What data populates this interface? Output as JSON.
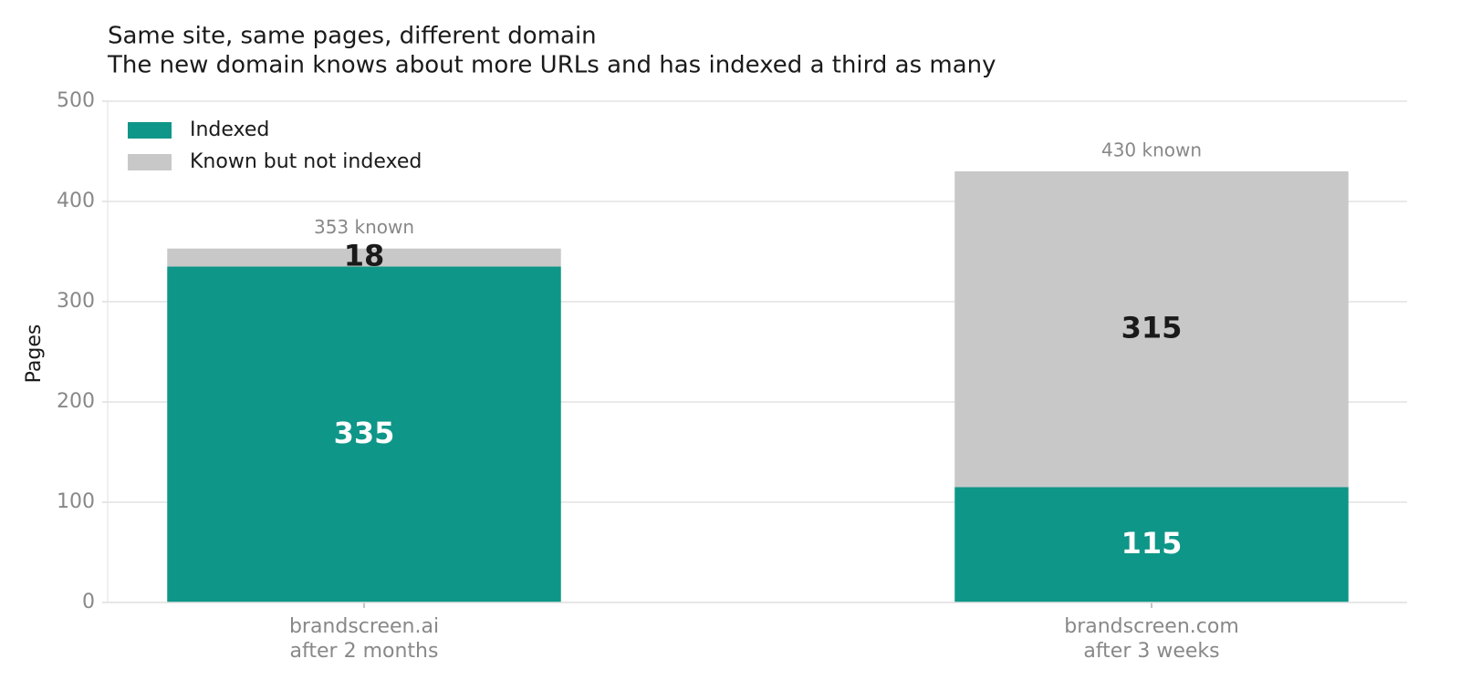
{
  "chart_data": {
    "type": "stacked-bar",
    "title": "Same site, same pages, different domain",
    "subtitle": "The new domain knows about more URLs and has indexed a third as many",
    "y_label": "Pages",
    "categories": [
      "brandscreen.ai\nafter 2 months",
      "brandscreen.com\nafter 3 weeks"
    ],
    "series": [
      {
        "name": "Indexed",
        "color": "#0e9688",
        "label_color": "#ffffff",
        "values": [
          335,
          115
        ]
      },
      {
        "name": "Known but not indexed",
        "color": "#c8c8c8",
        "label_color": "#1a1a1a",
        "values": [
          18,
          315
        ]
      }
    ],
    "annotations": [
      "353 known",
      "430 known"
    ],
    "ylim": [
      0,
      500
    ],
    "yticks": [
      0,
      100,
      200,
      300,
      400,
      500
    ],
    "grid": true,
    "legend": "upper left"
  }
}
